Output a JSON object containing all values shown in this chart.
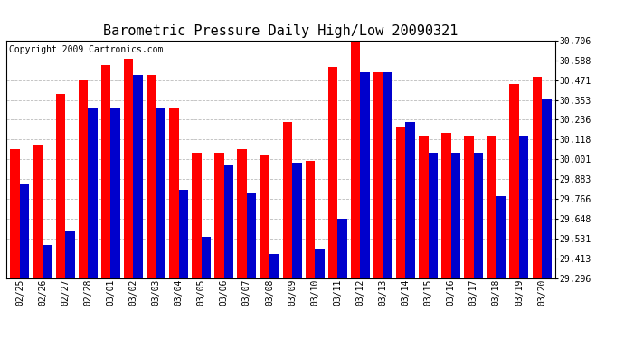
{
  "title": "Barometric Pressure Daily High/Low 20090321",
  "copyright": "Copyright 2009 Cartronics.com",
  "dates": [
    "02/25",
    "02/26",
    "02/27",
    "02/28",
    "03/01",
    "03/02",
    "03/03",
    "03/04",
    "03/05",
    "03/06",
    "03/07",
    "03/08",
    "03/09",
    "03/10",
    "03/11",
    "03/12",
    "03/13",
    "03/14",
    "03/15",
    "03/16",
    "03/17",
    "03/18",
    "03/19",
    "03/20"
  ],
  "highs": [
    30.06,
    30.09,
    30.39,
    30.47,
    30.56,
    30.6,
    30.5,
    30.31,
    30.04,
    30.04,
    30.06,
    30.03,
    30.22,
    29.99,
    30.55,
    30.7,
    30.52,
    30.19,
    30.14,
    30.16,
    30.14,
    30.14,
    30.45,
    30.49
  ],
  "lows": [
    29.86,
    29.49,
    29.57,
    30.31,
    30.31,
    30.5,
    30.31,
    29.82,
    29.54,
    29.97,
    29.8,
    29.44,
    29.98,
    29.47,
    29.65,
    30.52,
    30.52,
    30.22,
    30.04,
    30.04,
    30.04,
    29.78,
    30.14,
    30.36
  ],
  "y_ticks": [
    29.296,
    29.413,
    29.531,
    29.648,
    29.766,
    29.883,
    30.001,
    30.118,
    30.236,
    30.353,
    30.471,
    30.588,
    30.706
  ],
  "ymin": 29.296,
  "ymax": 30.706,
  "high_color": "#ff0000",
  "low_color": "#0000cc",
  "bg_color": "#ffffff",
  "plot_bg_color": "#ffffff",
  "grid_color": "#bbbbbb",
  "title_fontsize": 11,
  "copyright_fontsize": 7,
  "figwidth": 6.9,
  "figheight": 3.75,
  "dpi": 100
}
